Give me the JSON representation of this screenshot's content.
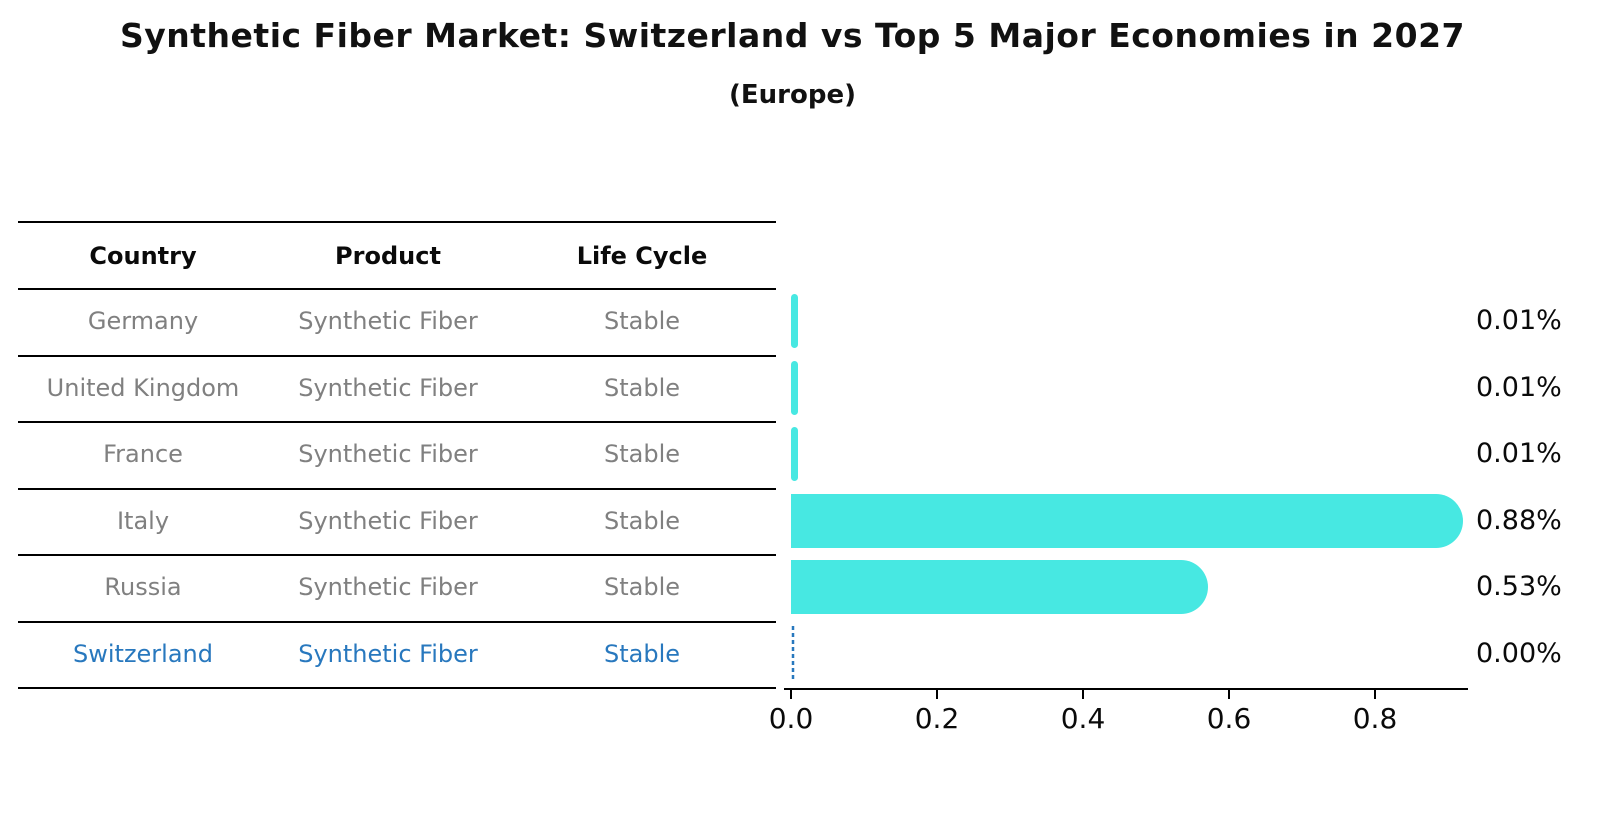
{
  "title": "Synthetic Fiber Market: Switzerland vs Top 5 Major Economies in 2027",
  "subtitle": "(Europe)",
  "colors": {
    "bar": "#47e8e2",
    "highlight_blue": "#2878be",
    "row_text_gray": "#808080",
    "axis_black": "#000000"
  },
  "table": {
    "headers": [
      "Country",
      "Product",
      "Life Cycle"
    ],
    "rows": [
      {
        "country": "Germany",
        "product": "Synthetic Fiber",
        "life_cycle": "Stable",
        "highlight": false
      },
      {
        "country": "United Kingdom",
        "product": "Synthetic Fiber",
        "life_cycle": "Stable",
        "highlight": false
      },
      {
        "country": "France",
        "product": "Synthetic Fiber",
        "life_cycle": "Stable",
        "highlight": false
      },
      {
        "country": "Italy",
        "product": "Synthetic Fiber",
        "life_cycle": "Stable",
        "highlight": false
      },
      {
        "country": "Russia",
        "product": "Synthetic Fiber",
        "life_cycle": "Stable",
        "highlight": false
      },
      {
        "country": "Switzerland",
        "product": "Synthetic Fiber",
        "life_cycle": "Stable",
        "highlight": true
      }
    ]
  },
  "chart_data": {
    "type": "bar",
    "orientation": "horizontal",
    "title": "Synthetic Fiber Market: Switzerland vs Top 5 Major Economies in 2027 (Europe)",
    "categories": [
      "Germany",
      "United Kingdom",
      "France",
      "Italy",
      "Russia",
      "Switzerland"
    ],
    "values": [
      0.01,
      0.01,
      0.01,
      0.88,
      0.53,
      0.0
    ],
    "value_labels": [
      "0.01%",
      "0.01%",
      "0.01%",
      "0.88%",
      "0.53%",
      "0.00%"
    ],
    "x_ticks": [
      "0.0",
      "0.2",
      "0.4",
      "0.6",
      "0.8"
    ],
    "x_tick_values": [
      0.0,
      0.2,
      0.4,
      0.6,
      0.8
    ],
    "xlim": [
      0,
      0.93
    ],
    "grid": false,
    "legend": false,
    "highlight_category": "Switzerland",
    "unit": "%"
  }
}
